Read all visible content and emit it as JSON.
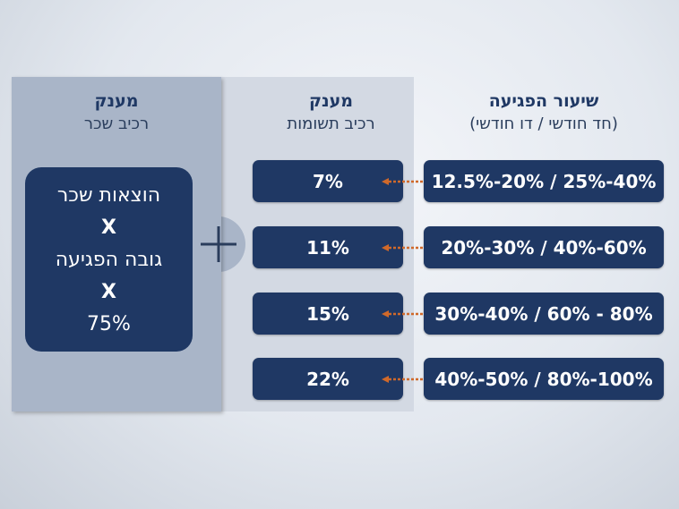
{
  "left_column": {
    "title": "מענק",
    "subtitle": "רכיב שכר",
    "formula": {
      "line1": "הוצאות שכר",
      "op1": "X",
      "line2": "גובה הפגיעה",
      "op2": "X",
      "line3": "75%"
    }
  },
  "middle_column": {
    "title": "מענק",
    "subtitle": "רכיב תשומות"
  },
  "right_column": {
    "title": "שיעור הפגיעה",
    "subtitle": "(חד חודשי / דו חודשי)"
  },
  "rows": [
    {
      "rate": "12.5%-20% / 25%-40%",
      "grant": "7%"
    },
    {
      "rate": "20%-30% / 40%-60%",
      "grant": "11%"
    },
    {
      "rate": "30%-40% / 60% - 80%",
      "grant": "15%"
    },
    {
      "rate": "40%-50% / 80%-100%",
      "grant": "22%"
    }
  ],
  "icons": {
    "plus": "plus-icon",
    "arrow": "dotted-arrow-left-icon"
  },
  "colors": {
    "box": "#1f3864",
    "arrow": "#d0692a",
    "left_panel": "#a9b5c8",
    "mid_panel": "#d3d9e3"
  }
}
